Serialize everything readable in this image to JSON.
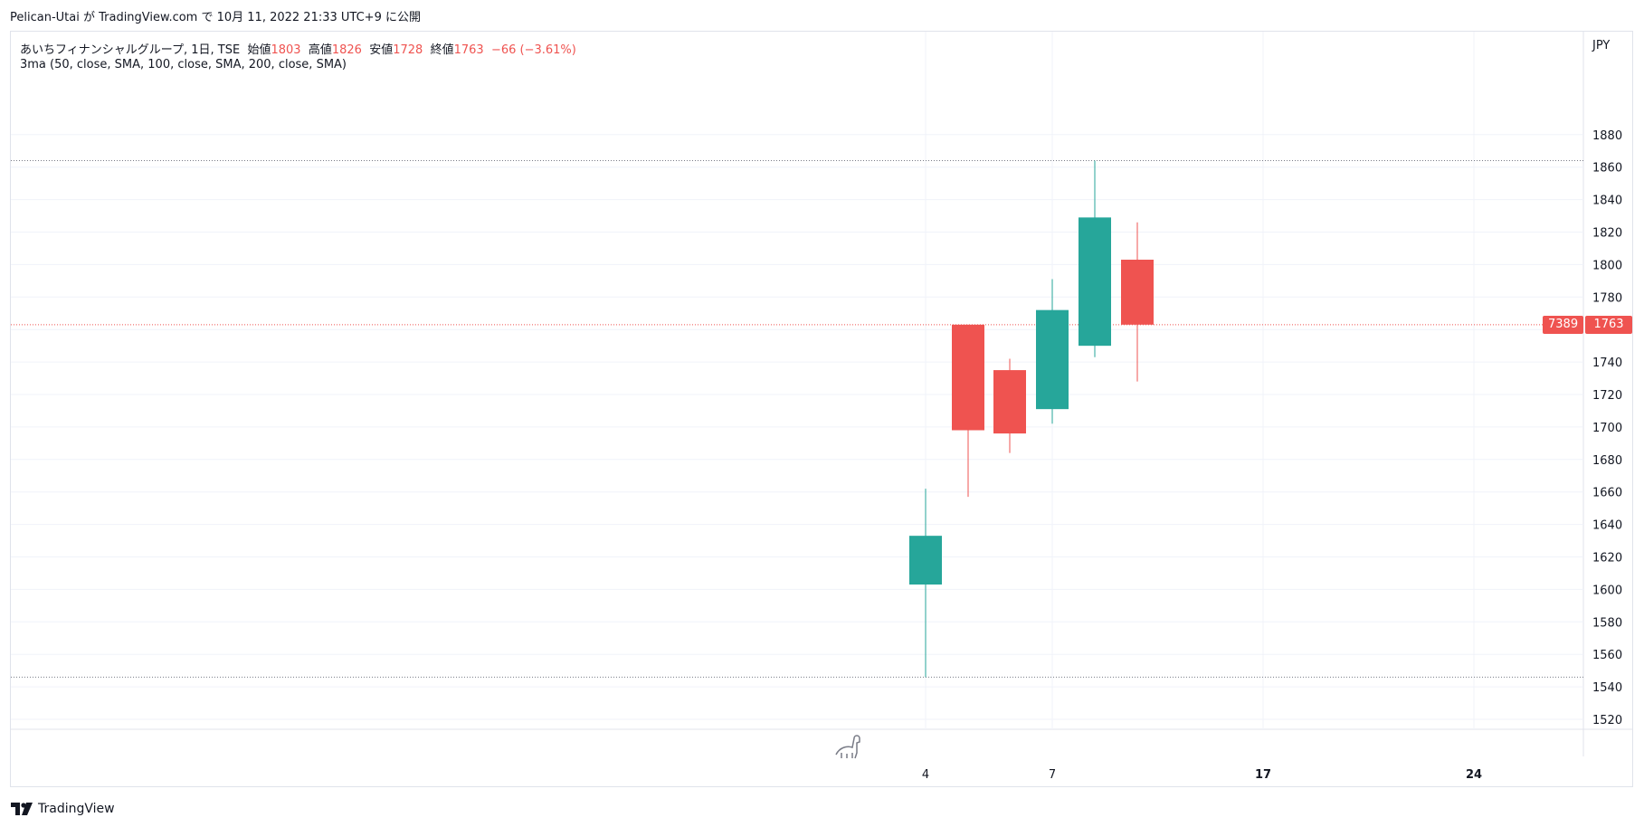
{
  "header": {
    "publish_line": "Pelican-Utai が TradingView.com で 10月 11, 2022 21:33 UTC+9 に公開"
  },
  "legend": {
    "symbol": "あいちフィナンシャルグループ, 1日, TSE",
    "open_label": "始値",
    "open_value": "1803",
    "high_label": "高値",
    "high_value": "1826",
    "low_label": "安値",
    "low_value": "1728",
    "close_label": "終値",
    "close_value": "1763",
    "change": "−66 (−3.61%)",
    "indicator": "3ma (50, close, SMA, 100, close, SMA, 200, close, SMA)"
  },
  "axis": {
    "currency": "JPY"
  },
  "price_badges": {
    "countdown": "7389",
    "last_price": "1763"
  },
  "footer": {
    "brand": "TradingView"
  },
  "colors": {
    "up": "#26a69a",
    "down": "#ef5350",
    "grid": "#f0f3fa",
    "axis_text": "#131722"
  },
  "chart_data": {
    "type": "candlestick",
    "title": "",
    "xlabel": "",
    "ylabel": "",
    "ylim": [
      1512,
      1890
    ],
    "y_ticks": [
      1520,
      1540,
      1560,
      1580,
      1600,
      1620,
      1640,
      1660,
      1680,
      1700,
      1720,
      1740,
      1760,
      1780,
      1800,
      1820,
      1840,
      1860,
      1880
    ],
    "x_ticks": [
      "4",
      "7",
      "17",
      "24"
    ],
    "grid": true,
    "candles": [
      {
        "open": 1603,
        "high": 1662,
        "low": 1546,
        "close": 1633
      },
      {
        "open": 1763,
        "high": 1763,
        "low": 1657,
        "close": 1698
      },
      {
        "open": 1735,
        "high": 1742,
        "low": 1684,
        "close": 1696
      },
      {
        "open": 1711,
        "high": 1791,
        "low": 1702,
        "close": 1772
      },
      {
        "open": 1750,
        "high": 1864,
        "low": 1743,
        "close": 1829
      },
      {
        "open": 1803,
        "high": 1826,
        "low": 1728,
        "close": 1763
      }
    ],
    "reference_lines": [
      1864,
      1763,
      1546
    ]
  }
}
